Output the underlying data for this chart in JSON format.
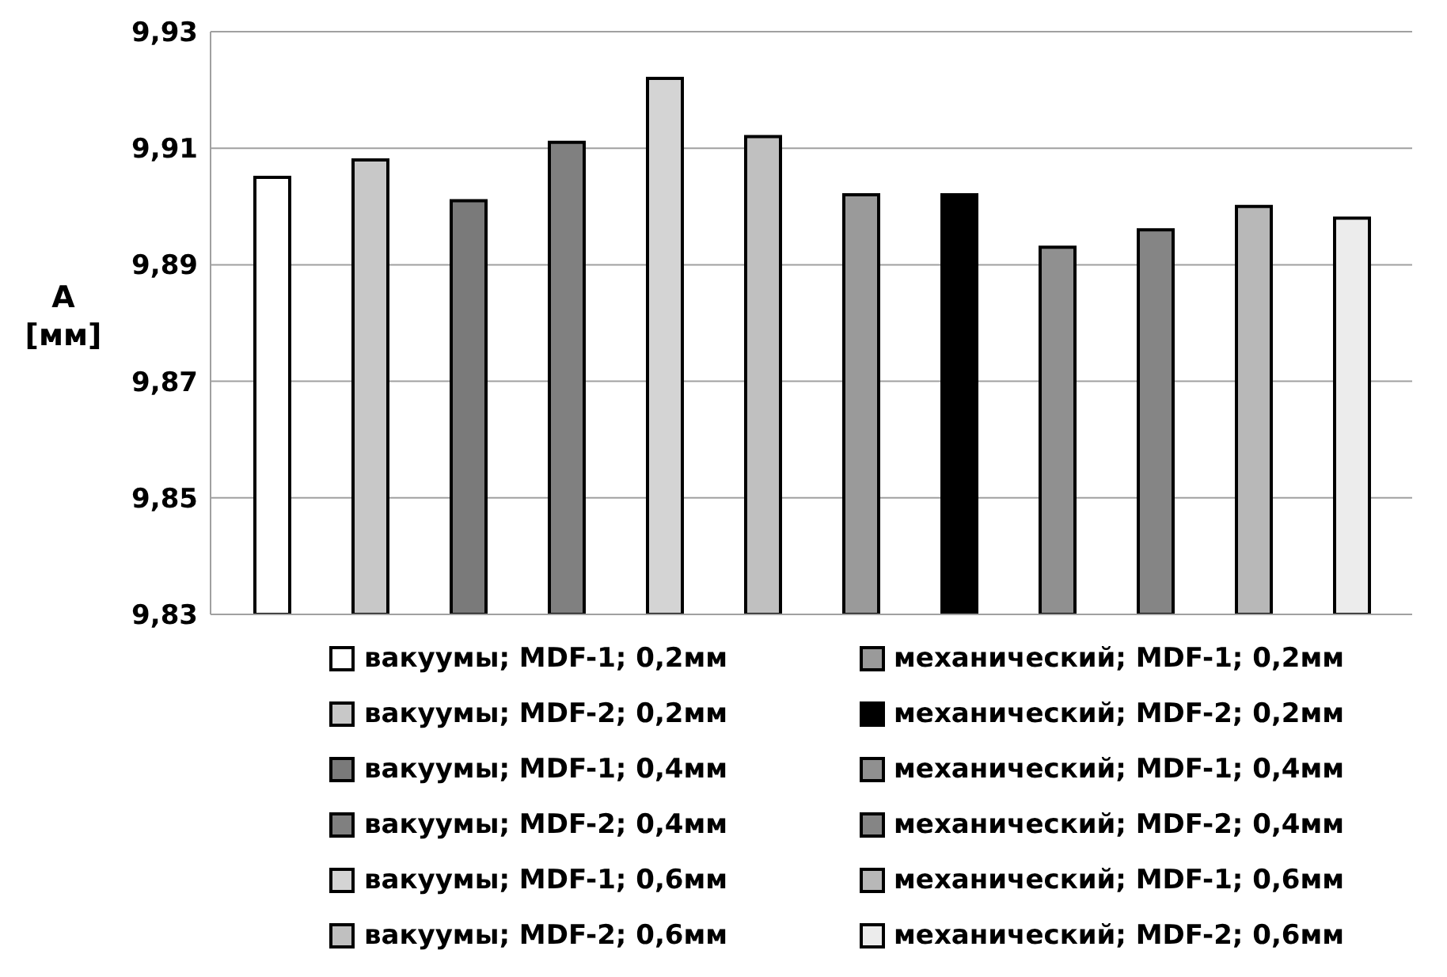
{
  "chart_data": {
    "type": "bar",
    "ylabel": "A [мм]",
    "categories": [
      null
    ],
    "series": [
      {
        "name": "вакуумы; MDF-1; 0,2мм",
        "color": "#ffffff",
        "values": [
          9.905
        ]
      },
      {
        "name": "вакуумы; MDF-2; 0,2мм",
        "color": "#c8c8c8",
        "values": [
          9.908
        ]
      },
      {
        "name": "вакуумы; MDF-1; 0,4мм",
        "color": "#7a7a7a",
        "values": [
          9.901
        ]
      },
      {
        "name": "вакуумы; MDF-2; 0,4мм",
        "color": "#808080",
        "values": [
          9.911
        ]
      },
      {
        "name": "вакуумы; MDF-1; 0,6мм",
        "color": "#d4d4d4",
        "values": [
          9.922
        ]
      },
      {
        "name": "вакуумы; MDF-2; 0,6мм",
        "color": "#c0c0c0",
        "values": [
          9.912
        ]
      },
      {
        "name": "механический; MDF-1; 0,2мм",
        "color": "#9a9a9a",
        "values": [
          9.902
        ]
      },
      {
        "name": "механический; MDF-2; 0,2мм",
        "color": "#000000",
        "values": [
          9.902
        ]
      },
      {
        "name": "механический; MDF-1; 0,4мм",
        "color": "#909090",
        "values": [
          9.893
        ]
      },
      {
        "name": "механический; MDF-2; 0,4мм",
        "color": "#858585",
        "values": [
          9.896
        ]
      },
      {
        "name": "механический; MDF-1; 0,6мм",
        "color": "#b8b8b8",
        "values": [
          9.9
        ]
      },
      {
        "name": "механический; MDF-2; 0,6мм",
        "color": "#ececec",
        "values": [
          9.898
        ]
      }
    ],
    "ylim": [
      9.83,
      9.93
    ],
    "yticks": [
      {
        "value": 9.83,
        "label": "9,83"
      },
      {
        "value": 9.85,
        "label": "9,85"
      },
      {
        "value": 9.87,
        "label": "9,87"
      },
      {
        "value": 9.89,
        "label": "9,89"
      },
      {
        "value": 9.91,
        "label": "9,91"
      },
      {
        "value": 9.93,
        "label": "9,93"
      }
    ],
    "grid": "y",
    "legend": "bottom"
  }
}
